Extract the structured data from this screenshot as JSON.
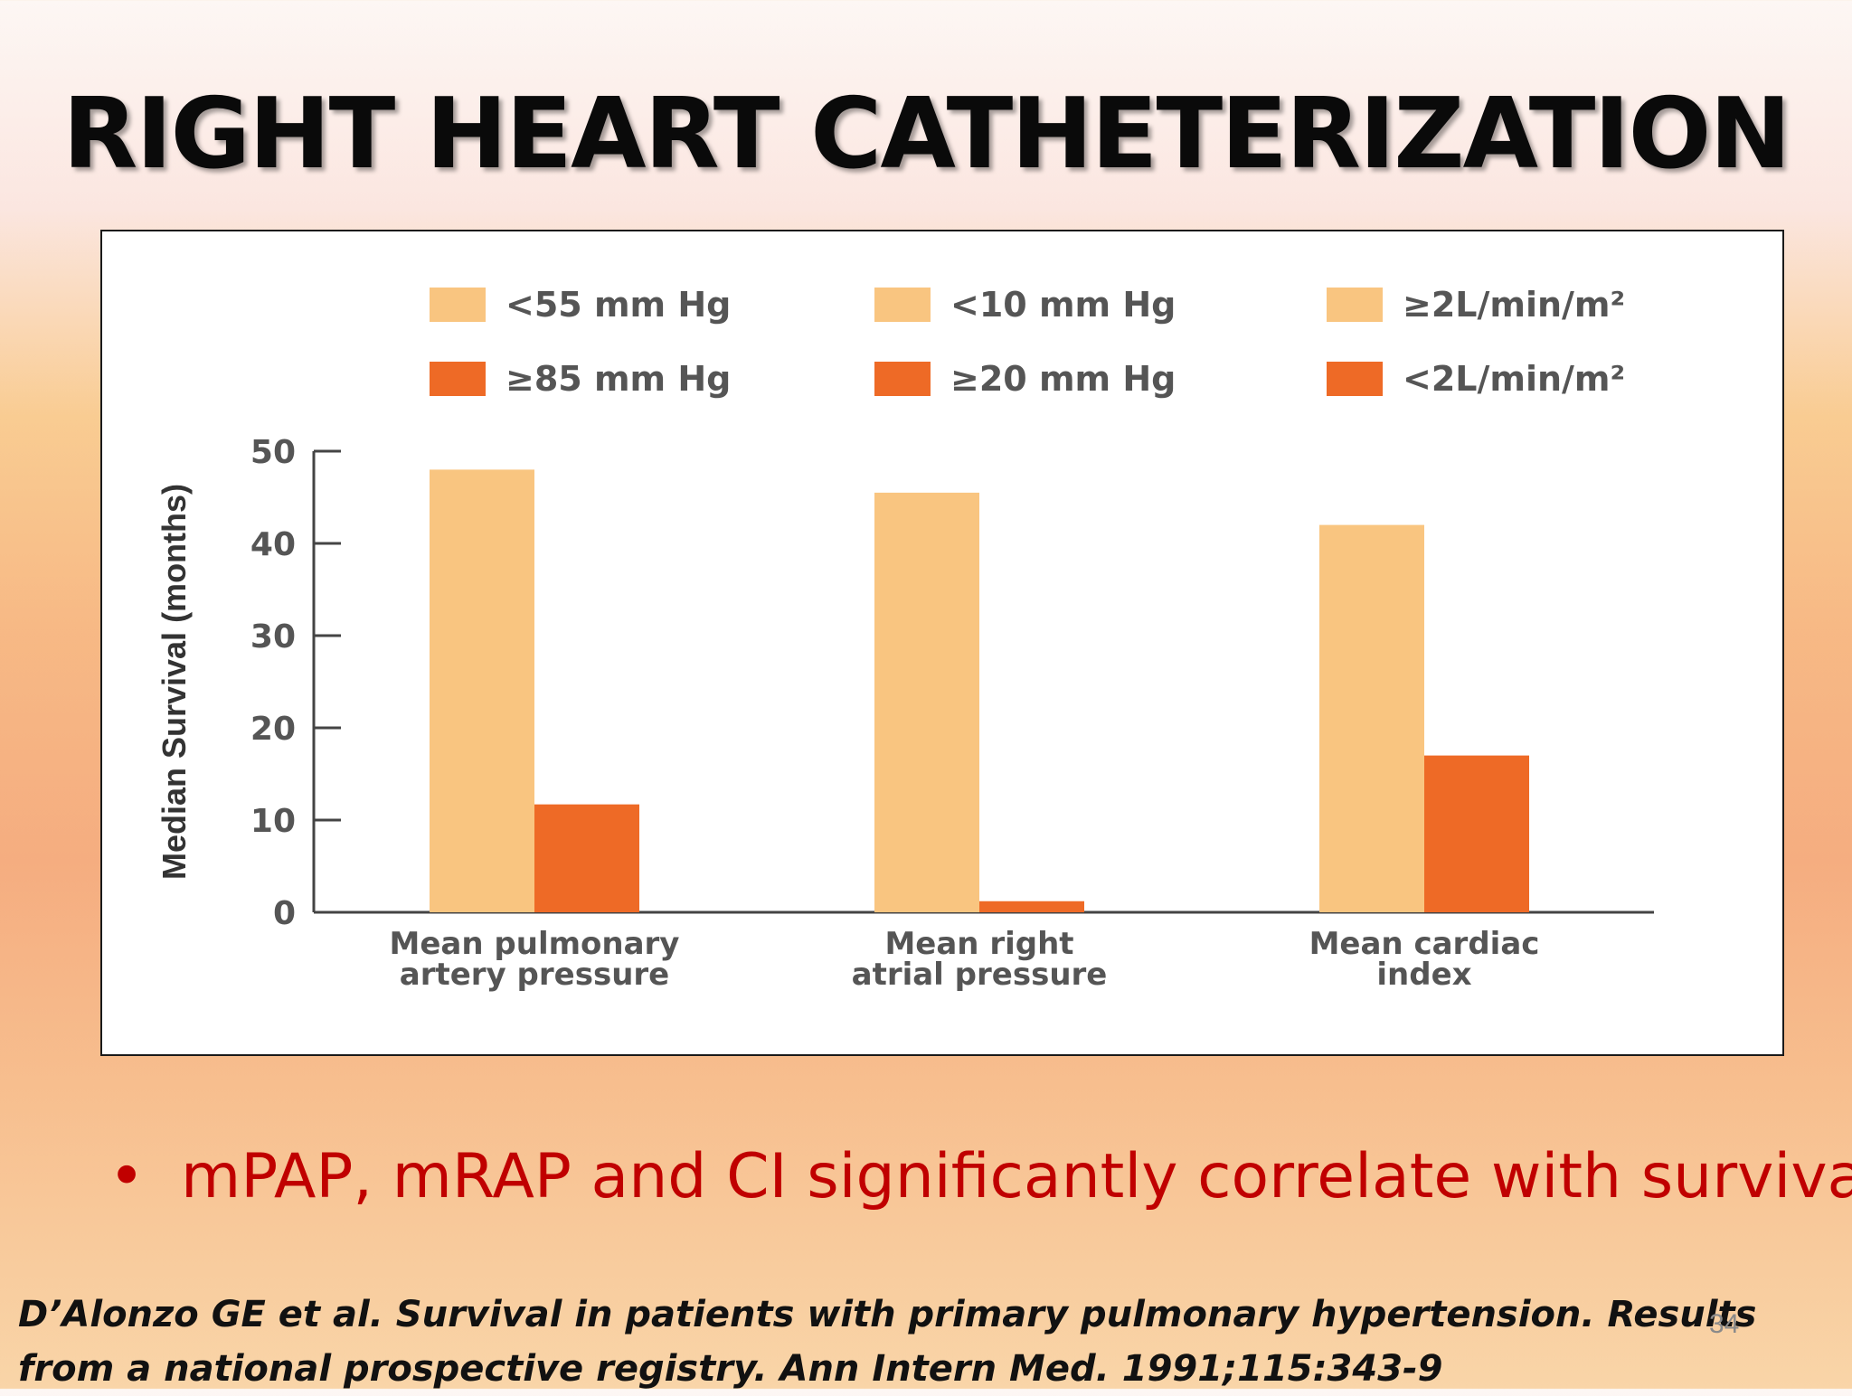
{
  "slide": {
    "title": "RIGHT HEART CATHETERIZATION",
    "bullet": "mPAP, mRAP and CI significantly correlate with survival",
    "bullet_marker": "•",
    "citation": "D’Alonzo GE et al. Survival in patients with primary pulmonary hypertension. Results from a national prospective registry. Ann Intern Med. 1991;115:343-9",
    "page_number": "34"
  },
  "colors": {
    "light_bar": "#f9c580",
    "dark_bar": "#ee6a26",
    "axis": "#444444",
    "title_text": "#0a0a0a",
    "bullet_text": "#c00000"
  },
  "chart_data": {
    "type": "bar",
    "ylabel": "Median Survival (months)",
    "ylim": [
      0,
      50
    ],
    "yticks": [
      0,
      10,
      20,
      30,
      40,
      50
    ],
    "categories": [
      [
        "Mean pulmonary",
        "artery pressure"
      ],
      [
        "Mean right",
        "atrial pressure"
      ],
      [
        "Mean cardiac",
        "index"
      ]
    ],
    "series": [
      {
        "tone": "light",
        "values": [
          48,
          45.5,
          42
        ]
      },
      {
        "tone": "dark",
        "values": [
          11.7,
          1.2,
          17
        ]
      }
    ],
    "legend": [
      [
        "<55 mm Hg",
        "≥85 mm Hg"
      ],
      [
        "<10 mm Hg",
        "≥20 mm Hg"
      ],
      [
        "≥2L/min/m²",
        "<2L/min/m²"
      ]
    ],
    "legend_position": "top",
    "grid": false
  }
}
